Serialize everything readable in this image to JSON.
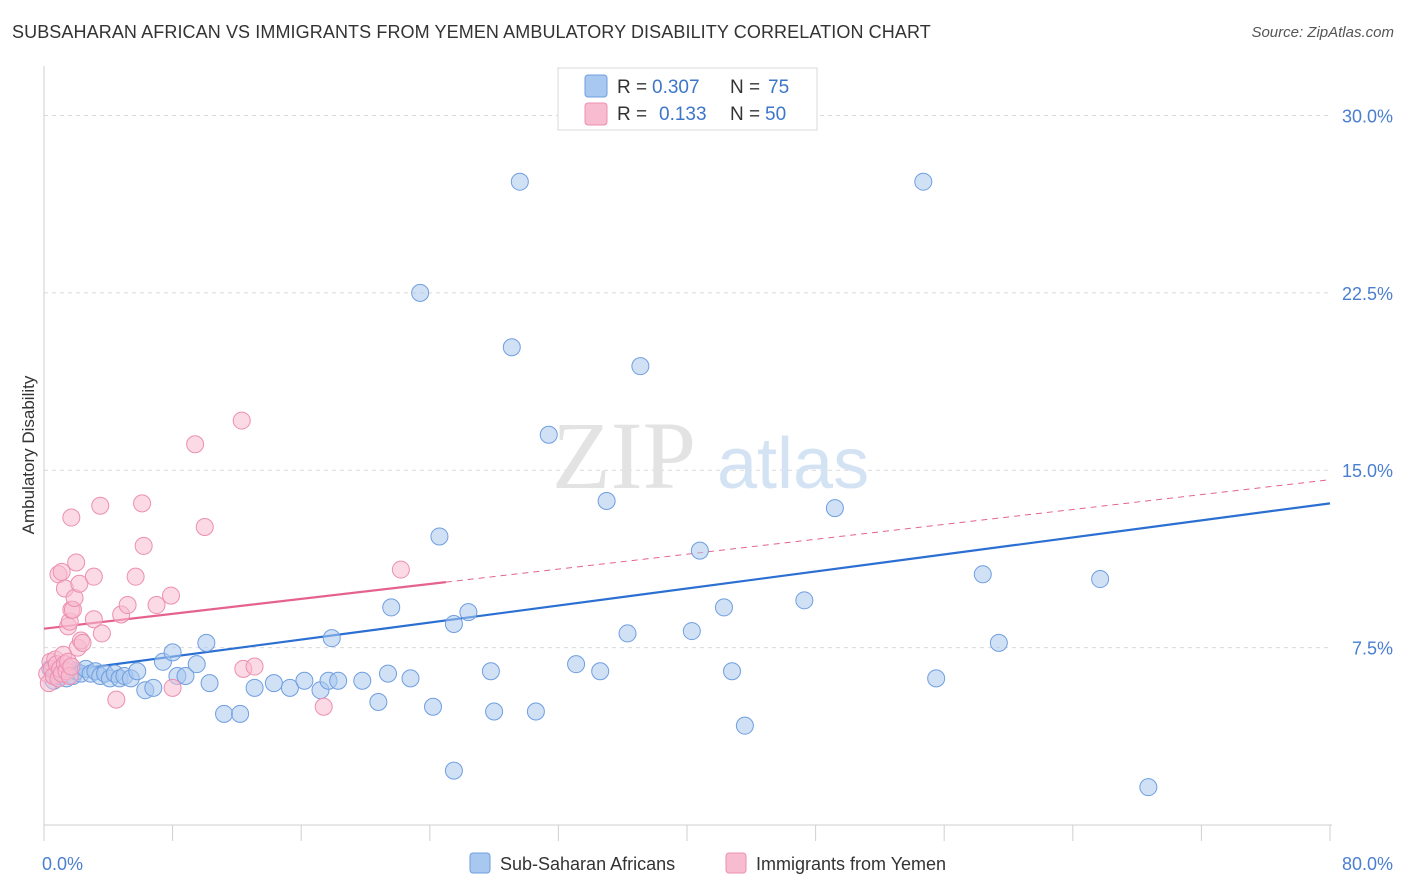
{
  "title": "SUBSAHARAN AFRICAN VS IMMIGRANTS FROM YEMEN AMBULATORY DISABILITY CORRELATION CHART",
  "source": "Source: ZipAtlas.com",
  "watermark": {
    "zip": "ZIP",
    "atlas": "atlas"
  },
  "colors": {
    "blue_fill": "#a9c8ef",
    "blue_stroke": "#6f9ee0",
    "blue_line": "#2a6fd1",
    "pink_fill": "#f7bcd0",
    "pink_stroke": "#ec8fb0",
    "pink_line": "#e5628f",
    "grid": "#d9d9d9",
    "tick_text": "#4a7fcf"
  },
  "legend": {
    "rows": [
      {
        "r_label": "R =",
        "r_value": "0.307",
        "n_label": "N =",
        "n_value": "75"
      },
      {
        "r_label": "R =",
        "r_value": "0.133",
        "n_label": "N =",
        "n_value": "50"
      }
    ]
  },
  "chart_data": {
    "type": "scatter",
    "title": "SUBSAHARAN AFRICAN VS IMMIGRANTS FROM YEMEN AMBULATORY DISABILITY CORRELATION CHART",
    "xlabel": "",
    "ylabel": "Ambulatory Disability",
    "xlim": [
      0,
      80
    ],
    "ylim": [
      0,
      31.5
    ],
    "x_tick_labels": [
      "0.0%",
      "80.0%"
    ],
    "y_ticks": [
      7.5,
      15.0,
      22.5,
      30.0
    ],
    "y_tick_labels": [
      "7.5%",
      "15.0%",
      "22.5%",
      "30.0%"
    ],
    "series": [
      {
        "name": "Sub-Saharan Africans",
        "color": "#a9c8ef",
        "trend": {
          "x": [
            0,
            80
          ],
          "y": [
            6.4,
            13.6
          ],
          "style": "solid"
        },
        "points": [
          [
            0.4,
            6.6
          ],
          [
            0.6,
            6.1
          ],
          [
            0.8,
            6.5
          ],
          [
            1.0,
            6.3
          ],
          [
            1.2,
            6.4
          ],
          [
            1.4,
            6.2
          ],
          [
            1.6,
            6.6
          ],
          [
            1.8,
            6.3
          ],
          [
            2.0,
            6.5
          ],
          [
            2.3,
            6.4
          ],
          [
            2.6,
            6.6
          ],
          [
            2.9,
            6.4
          ],
          [
            3.2,
            6.5
          ],
          [
            3.5,
            6.3
          ],
          [
            3.8,
            6.4
          ],
          [
            4.1,
            6.2
          ],
          [
            4.4,
            6.4
          ],
          [
            4.7,
            6.2
          ],
          [
            5.0,
            6.3
          ],
          [
            5.4,
            6.2
          ],
          [
            5.8,
            6.5
          ],
          [
            6.3,
            5.7
          ],
          [
            6.8,
            5.8
          ],
          [
            7.4,
            6.9
          ],
          [
            8.3,
            6.3
          ],
          [
            8.8,
            6.3
          ],
          [
            9.5,
            6.8
          ],
          [
            10.3,
            6.0
          ],
          [
            11.2,
            4.7
          ],
          [
            12.2,
            4.7
          ],
          [
            13.1,
            5.8
          ],
          [
            14.3,
            6.0
          ],
          [
            15.3,
            5.8
          ],
          [
            16.2,
            6.1
          ],
          [
            17.2,
            5.7
          ],
          [
            17.7,
            6.1
          ],
          [
            18.3,
            6.1
          ],
          [
            19.8,
            6.1
          ],
          [
            20.8,
            5.2
          ],
          [
            21.6,
            9.2
          ],
          [
            21.4,
            6.4
          ],
          [
            22.8,
            6.2
          ],
          [
            24.2,
            5.0
          ],
          [
            24.6,
            12.2
          ],
          [
            25.5,
            8.5
          ],
          [
            26.4,
            9.0
          ],
          [
            27.8,
            6.5
          ],
          [
            29.1,
            20.2
          ],
          [
            29.6,
            27.2
          ],
          [
            30.6,
            4.8
          ],
          [
            31.4,
            16.5
          ],
          [
            33.1,
            6.8
          ],
          [
            34.6,
            6.5
          ],
          [
            35.0,
            13.7
          ],
          [
            36.3,
            8.1
          ],
          [
            37.1,
            19.4
          ],
          [
            40.3,
            8.2
          ],
          [
            40.8,
            11.6
          ],
          [
            42.3,
            9.2
          ],
          [
            42.8,
            6.5
          ],
          [
            43.6,
            4.2
          ],
          [
            47.3,
            9.5
          ],
          [
            49.2,
            13.4
          ],
          [
            54.7,
            27.2
          ],
          [
            55.5,
            6.2
          ],
          [
            58.4,
            10.6
          ],
          [
            59.4,
            7.7
          ],
          [
            65.7,
            10.4
          ],
          [
            68.7,
            1.6
          ],
          [
            25.5,
            2.3
          ],
          [
            10.1,
            7.7
          ],
          [
            17.9,
            7.9
          ],
          [
            28.0,
            4.8
          ],
          [
            23.4,
            22.5
          ],
          [
            8.0,
            7.3
          ]
        ]
      },
      {
        "name": "Immigrants from Yemen",
        "color": "#f7bcd0",
        "trend": {
          "x": [
            0,
            80
          ],
          "y": [
            8.3,
            14.6
          ],
          "style": "solid-then-dashed",
          "solid_until_x": 25
        },
        "points": [
          [
            0.2,
            6.4
          ],
          [
            0.3,
            6.0
          ],
          [
            0.4,
            6.9
          ],
          [
            0.5,
            6.6
          ],
          [
            0.6,
            6.3
          ],
          [
            0.7,
            7.0
          ],
          [
            0.8,
            6.8
          ],
          [
            0.9,
            6.2
          ],
          [
            1.0,
            6.6
          ],
          [
            1.1,
            6.4
          ],
          [
            1.2,
            7.2
          ],
          [
            1.3,
            6.8
          ],
          [
            1.4,
            6.5
          ],
          [
            1.5,
            6.9
          ],
          [
            1.6,
            6.3
          ],
          [
            1.7,
            6.7
          ],
          [
            0.9,
            10.6
          ],
          [
            1.1,
            10.7
          ],
          [
            1.3,
            10.0
          ],
          [
            1.5,
            8.4
          ],
          [
            1.6,
            8.6
          ],
          [
            1.7,
            9.1
          ],
          [
            1.8,
            9.1
          ],
          [
            1.9,
            9.6
          ],
          [
            2.0,
            11.1
          ],
          [
            2.1,
            7.5
          ],
          [
            2.2,
            10.2
          ],
          [
            2.3,
            7.8
          ],
          [
            2.4,
            7.7
          ],
          [
            1.7,
            13.0
          ],
          [
            3.1,
            10.5
          ],
          [
            3.1,
            8.7
          ],
          [
            3.5,
            13.5
          ],
          [
            3.6,
            8.1
          ],
          [
            4.5,
            5.3
          ],
          [
            4.8,
            8.9
          ],
          [
            5.2,
            9.3
          ],
          [
            5.7,
            10.5
          ],
          [
            6.1,
            13.6
          ],
          [
            6.2,
            11.8
          ],
          [
            7.0,
            9.3
          ],
          [
            7.9,
            9.7
          ],
          [
            8.0,
            5.8
          ],
          [
            9.4,
            16.1
          ],
          [
            10.0,
            12.6
          ],
          [
            12.3,
            17.1
          ],
          [
            12.4,
            6.6
          ],
          [
            13.1,
            6.7
          ],
          [
            17.4,
            5.0
          ],
          [
            22.2,
            10.8
          ]
        ]
      }
    ]
  },
  "bottom_legend": [
    {
      "label": "Sub-Saharan Africans"
    },
    {
      "label": "Immigrants from Yemen"
    }
  ]
}
